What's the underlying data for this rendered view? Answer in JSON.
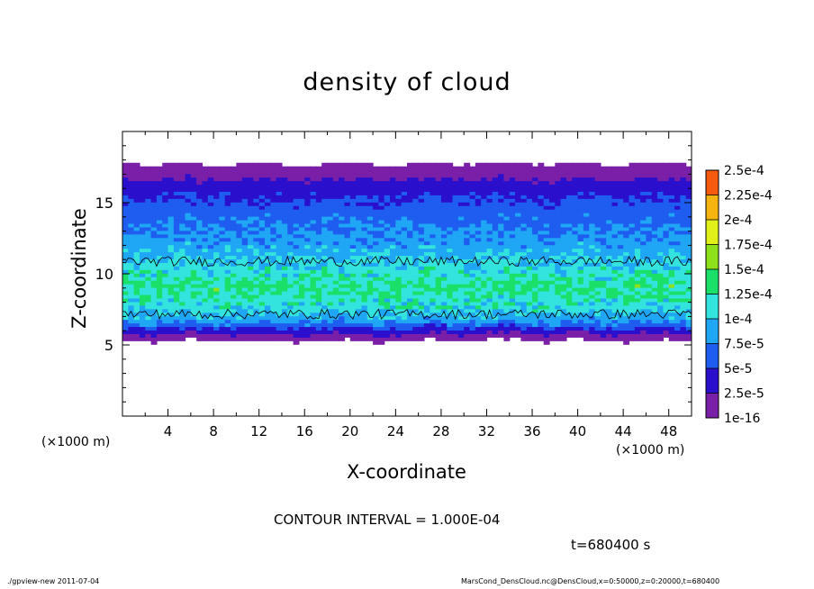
{
  "chart_data": {
    "type": "heatmap",
    "title": "density of cloud",
    "xlabel": "X-coordinate",
    "ylabel": "Z-coordinate",
    "x_unit": "(×1000 m)",
    "xlim": [
      0,
      50
    ],
    "ylim": [
      0,
      20
    ],
    "xticks": [
      "4",
      "8",
      "12",
      "16",
      "20",
      "24",
      "28",
      "32",
      "36",
      "40",
      "44",
      "48"
    ],
    "yticks": [
      "5",
      "10",
      "15"
    ],
    "colorbar": {
      "labels": [
        "1e-16",
        "2.5e-5",
        "5e-5",
        "7.5e-5",
        "1e-4",
        "1.25e-4",
        "1.5e-4",
        "1.75e-4",
        "2e-4",
        "2.25e-4",
        "2.5e-4"
      ],
      "colors": [
        "#7a1fa8",
        "#2a10cc",
        "#1f5df0",
        "#1fa6f5",
        "#33e3dd",
        "#1ae06a",
        "#8ee01a",
        "#e2f01a",
        "#f5b40f",
        "#f55a0f",
        "#ff6a6a"
      ]
    },
    "density_profile": [
      {
        "z": 17.6,
        "value": 1.2e-06
      },
      {
        "z": 16.8,
        "value": 1.8e-05
      },
      {
        "z": 16.0,
        "value": 3.8e-05
      },
      {
        "z": 14.5,
        "value": 6e-05
      },
      {
        "z": 12.0,
        "value": 8.5e-05
      },
      {
        "z": 10.5,
        "value": 0.000105
      },
      {
        "z": 9.0,
        "value": 0.00013
      },
      {
        "z": 7.5,
        "value": 0.00011
      },
      {
        "z": 6.5,
        "value": 8e-05
      },
      {
        "z": 5.8,
        "value": 3e-05
      },
      {
        "z": 5.2,
        "value": 3e-06
      }
    ],
    "contour_interval": "CONTOUR INTERVAL = 1.000E-04",
    "time": "t=680400  s"
  },
  "footer": {
    "left": "./gpview-new   2011-07-04",
    "right": "MarsCond_DensCloud.nc@DensCloud,x=0:50000,z=0:20000,t=680400"
  }
}
